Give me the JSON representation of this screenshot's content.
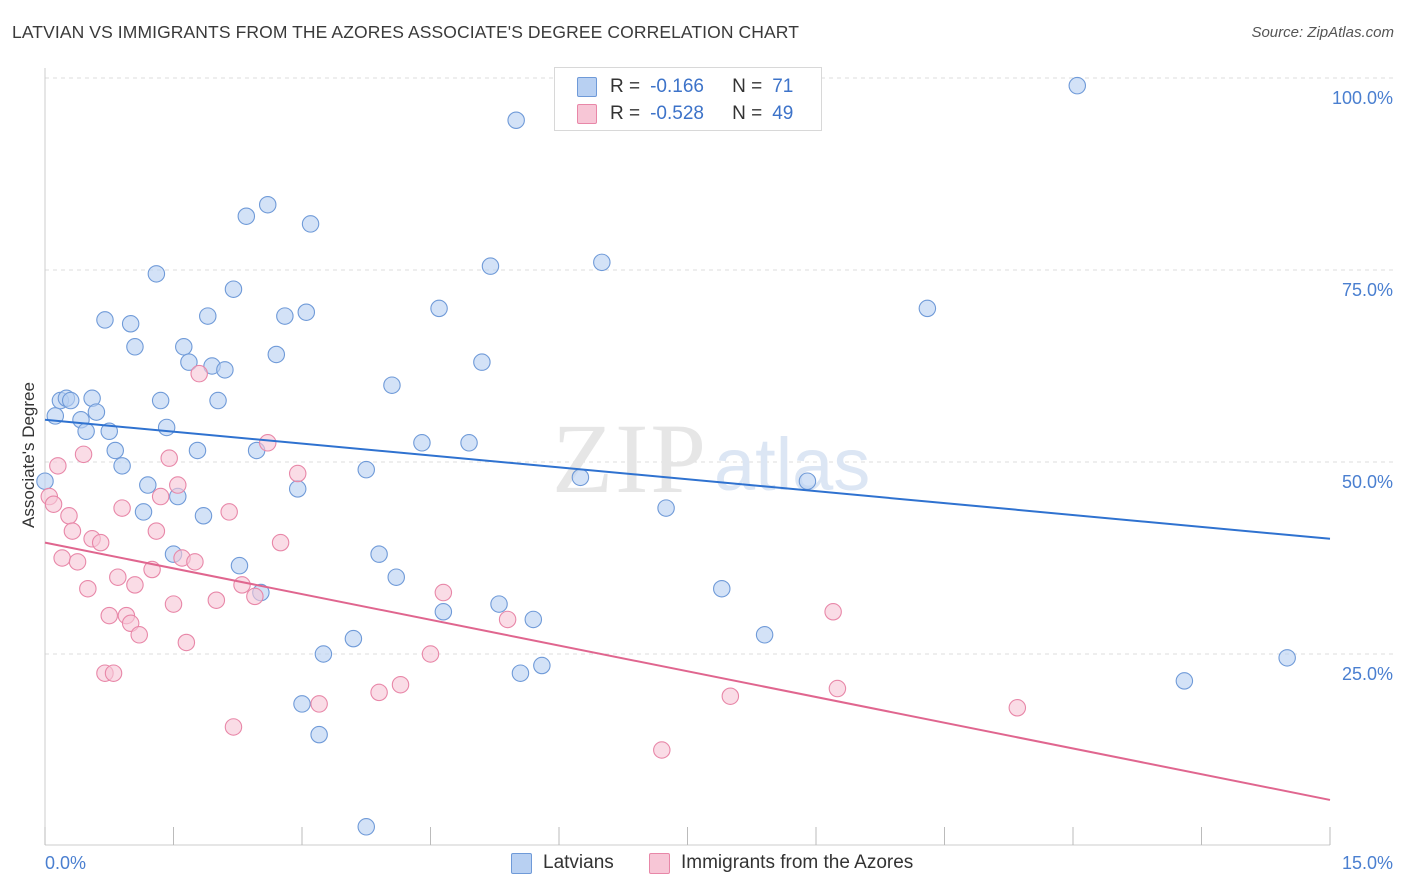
{
  "title": "LATVIAN VS IMMIGRANTS FROM THE AZORES ASSOCIATE'S DEGREE CORRELATION CHART",
  "source": "Source: ZipAtlas.com",
  "legend": {
    "row1": {
      "r_label": "R =",
      "r_value": "-0.166",
      "n_label": "N =",
      "n_value": "71"
    },
    "row2": {
      "r_label": "R =",
      "r_value": "-0.528",
      "n_label": "N =",
      "n_value": "49"
    }
  },
  "bottom_legend": {
    "series1": "Latvians",
    "series2": "Immigrants from the Azores"
  },
  "watermark": {
    "zip": "ZIP",
    "atlas": "atlas"
  },
  "colors": {
    "latvians_fill": "#b8d0f2",
    "latvians_stroke": "#6f9ad8",
    "latvians_line": "#2f72d0",
    "azores_fill": "#f7c6d6",
    "azores_stroke": "#e887a8",
    "azores_line": "#e0668f",
    "tick_label": "#4a7fd0",
    "grid": "#dddddd"
  },
  "chart_data": {
    "type": "scatter",
    "title": "LATVIAN VS IMMIGRANTS FROM THE AZORES ASSOCIATE'S DEGREE CORRELATION CHART",
    "xlabel": "",
    "ylabel": "Associate's Degree",
    "xlim": [
      0,
      15
    ],
    "ylim": [
      0,
      102
    ],
    "x_tick_labels": [
      "0.0%",
      "15.0%"
    ],
    "y_ticks": [
      25,
      50,
      75,
      100
    ],
    "y_tick_labels": [
      "25.0%",
      "50.0%",
      "75.0%",
      "100.0%"
    ],
    "grid": "horizontal dashed",
    "legend_position": "top-center",
    "series": [
      {
        "name": "Latvians",
        "r": -0.166,
        "n": 71,
        "trend": {
          "x": [
            0,
            15
          ],
          "y": [
            55.5,
            40
          ]
        },
        "points": [
          [
            0.0,
            47.5
          ],
          [
            0.12,
            56
          ],
          [
            0.18,
            58
          ],
          [
            0.25,
            58.3
          ],
          [
            0.3,
            58
          ],
          [
            0.42,
            55.5
          ],
          [
            0.48,
            54
          ],
          [
            0.55,
            58.3
          ],
          [
            0.6,
            56.5
          ],
          [
            0.7,
            68.5
          ],
          [
            0.75,
            54
          ],
          [
            0.82,
            51.5
          ],
          [
            0.9,
            49.5
          ],
          [
            1.0,
            68
          ],
          [
            1.05,
            65
          ],
          [
            1.15,
            43.5
          ],
          [
            1.2,
            47
          ],
          [
            1.3,
            74.5
          ],
          [
            1.35,
            58
          ],
          [
            1.42,
            54.5
          ],
          [
            1.5,
            38
          ],
          [
            1.55,
            45.5
          ],
          [
            1.62,
            65
          ],
          [
            1.68,
            63
          ],
          [
            1.78,
            51.5
          ],
          [
            1.85,
            43
          ],
          [
            1.9,
            69
          ],
          [
            1.95,
            62.5
          ],
          [
            2.02,
            58
          ],
          [
            2.1,
            62
          ],
          [
            2.2,
            72.5
          ],
          [
            2.27,
            36.5
          ],
          [
            2.35,
            82
          ],
          [
            2.47,
            51.5
          ],
          [
            2.52,
            33
          ],
          [
            2.6,
            83.5
          ],
          [
            2.7,
            64
          ],
          [
            2.8,
            69
          ],
          [
            2.95,
            46.5
          ],
          [
            3.0,
            18.5
          ],
          [
            3.05,
            69.5
          ],
          [
            3.1,
            81
          ],
          [
            3.2,
            14.5
          ],
          [
            3.25,
            25
          ],
          [
            3.6,
            27
          ],
          [
            3.75,
            2.5
          ],
          [
            3.75,
            49
          ],
          [
            3.9,
            38
          ],
          [
            4.05,
            60
          ],
          [
            4.1,
            35
          ],
          [
            4.4,
            52.5
          ],
          [
            4.6,
            70
          ],
          [
            4.65,
            30.5
          ],
          [
            4.95,
            52.5
          ],
          [
            5.1,
            63
          ],
          [
            5.2,
            75.5
          ],
          [
            5.3,
            31.5
          ],
          [
            5.5,
            94.5
          ],
          [
            5.55,
            22.5
          ],
          [
            5.7,
            29.5
          ],
          [
            5.8,
            23.5
          ],
          [
            6.25,
            48
          ],
          [
            6.5,
            76
          ],
          [
            7.25,
            44
          ],
          [
            7.9,
            33.5
          ],
          [
            8.4,
            27.5
          ],
          [
            8.9,
            47.5
          ],
          [
            10.3,
            70
          ],
          [
            12.05,
            99
          ],
          [
            13.3,
            21.5
          ],
          [
            14.5,
            24.5
          ]
        ]
      },
      {
        "name": "Immigrants from the Azores",
        "r": -0.528,
        "n": 49,
        "trend": {
          "x": [
            0,
            15
          ],
          "y": [
            39.5,
            6
          ]
        },
        "points": [
          [
            0.05,
            45.5
          ],
          [
            0.1,
            44.5
          ],
          [
            0.15,
            49.5
          ],
          [
            0.2,
            37.5
          ],
          [
            0.28,
            43
          ],
          [
            0.32,
            41
          ],
          [
            0.38,
            37
          ],
          [
            0.45,
            51
          ],
          [
            0.5,
            33.5
          ],
          [
            0.55,
            40
          ],
          [
            0.65,
            39.5
          ],
          [
            0.7,
            22.5
          ],
          [
            0.75,
            30
          ],
          [
            0.8,
            22.5
          ],
          [
            0.85,
            35
          ],
          [
            0.9,
            44
          ],
          [
            0.95,
            30
          ],
          [
            1.0,
            29
          ],
          [
            1.05,
            34
          ],
          [
            1.1,
            27.5
          ],
          [
            1.25,
            36
          ],
          [
            1.3,
            41
          ],
          [
            1.35,
            45.5
          ],
          [
            1.45,
            50.5
          ],
          [
            1.5,
            31.5
          ],
          [
            1.55,
            47
          ],
          [
            1.6,
            37.5
          ],
          [
            1.65,
            26.5
          ],
          [
            1.75,
            37
          ],
          [
            1.8,
            61.5
          ],
          [
            2.0,
            32
          ],
          [
            2.15,
            43.5
          ],
          [
            2.2,
            15.5
          ],
          [
            2.3,
            34
          ],
          [
            2.45,
            32.5
          ],
          [
            2.6,
            52.5
          ],
          [
            2.75,
            39.5
          ],
          [
            2.95,
            48.5
          ],
          [
            3.2,
            18.5
          ],
          [
            3.9,
            20
          ],
          [
            4.15,
            21
          ],
          [
            4.5,
            25
          ],
          [
            4.65,
            33
          ],
          [
            5.4,
            29.5
          ],
          [
            7.2,
            12.5
          ],
          [
            8.0,
            19.5
          ],
          [
            9.2,
            30.5
          ],
          [
            9.25,
            20.5
          ],
          [
            11.35,
            18
          ]
        ]
      }
    ]
  }
}
